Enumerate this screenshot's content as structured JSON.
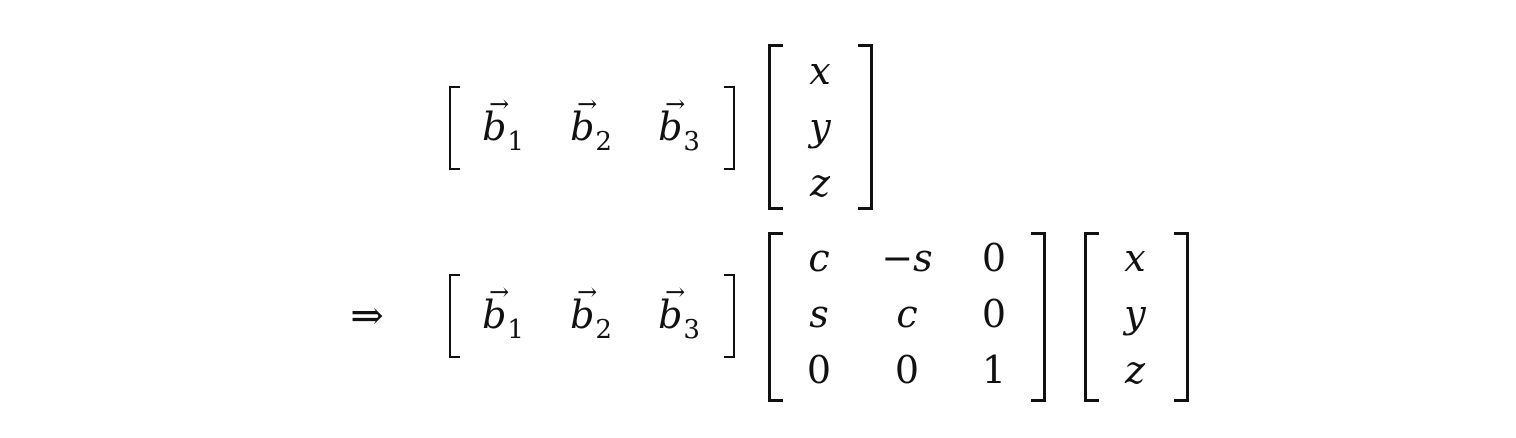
{
  "equation": {
    "row1": {
      "basis_vectors": [
        {
          "base": "b",
          "sub": "1"
        },
        {
          "base": "b",
          "sub": "2"
        },
        {
          "base": "b",
          "sub": "3"
        }
      ],
      "coords": [
        "x",
        "y",
        "z"
      ]
    },
    "row2": {
      "implies": "⇒",
      "basis_vectors": [
        {
          "base": "b",
          "sub": "1"
        },
        {
          "base": "b",
          "sub": "2"
        },
        {
          "base": "b",
          "sub": "3"
        }
      ],
      "rotation_matrix": [
        [
          "c",
          "−s",
          "0"
        ],
        [
          "s",
          "c",
          "0"
        ],
        [
          "0",
          "0",
          "1"
        ]
      ],
      "coords": [
        "x",
        "y",
        "z"
      ]
    }
  }
}
